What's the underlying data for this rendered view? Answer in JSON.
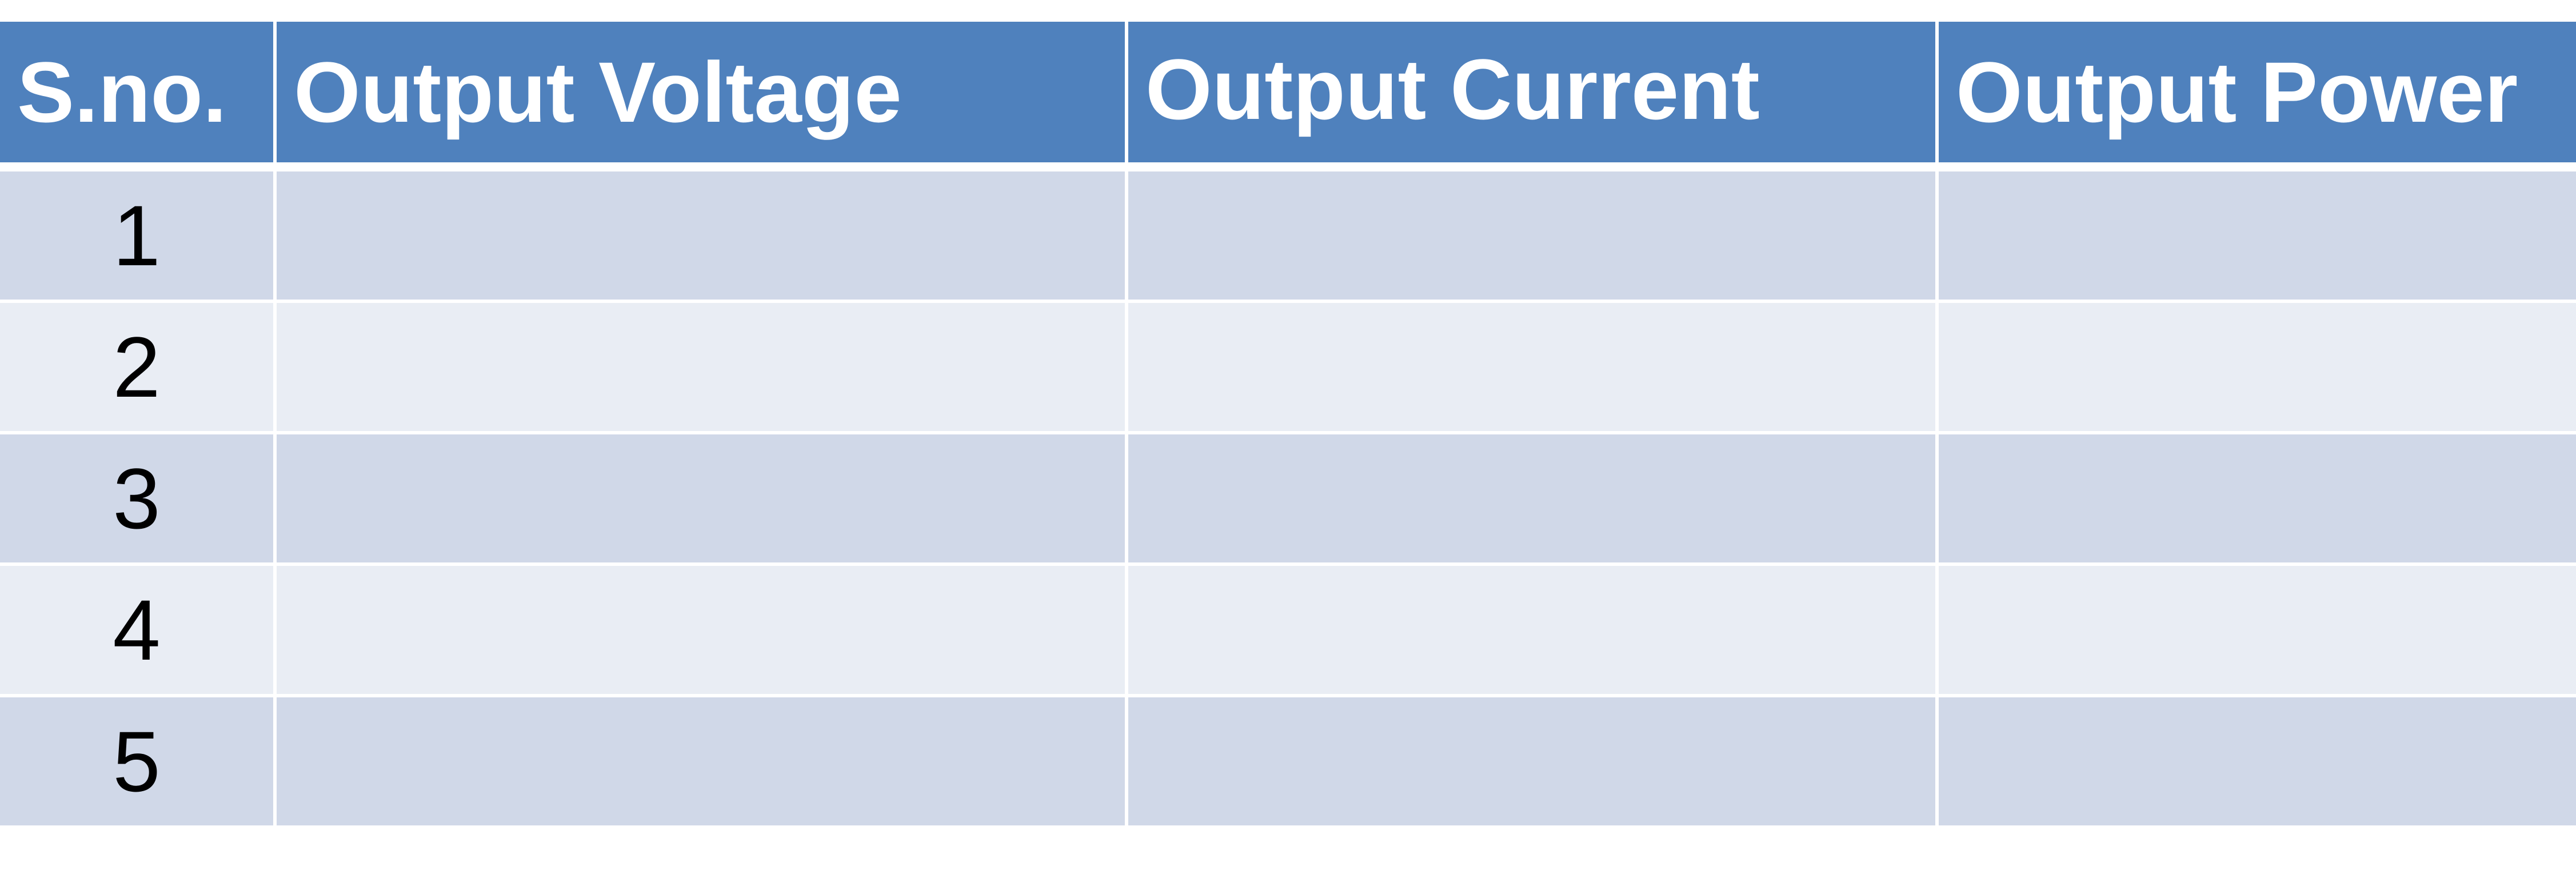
{
  "table": {
    "headers": [
      "S.no.",
      "Output Voltage",
      "Output Current",
      "Output Power"
    ],
    "rows": [
      {
        "sno": "1",
        "voltage": "",
        "current": "",
        "power": ""
      },
      {
        "sno": "2",
        "voltage": "",
        "current": "",
        "power": ""
      },
      {
        "sno": "3",
        "voltage": "",
        "current": "",
        "power": ""
      },
      {
        "sno": "4",
        "voltage": "",
        "current": "",
        "power": ""
      },
      {
        "sno": "5",
        "voltage": "",
        "current": "",
        "power": ""
      }
    ],
    "colors": {
      "header_bg": "#4f81bd",
      "header_text": "#ffffff",
      "row_odd_bg": "#d0d8e8",
      "row_even_bg": "#e9edf4"
    }
  }
}
